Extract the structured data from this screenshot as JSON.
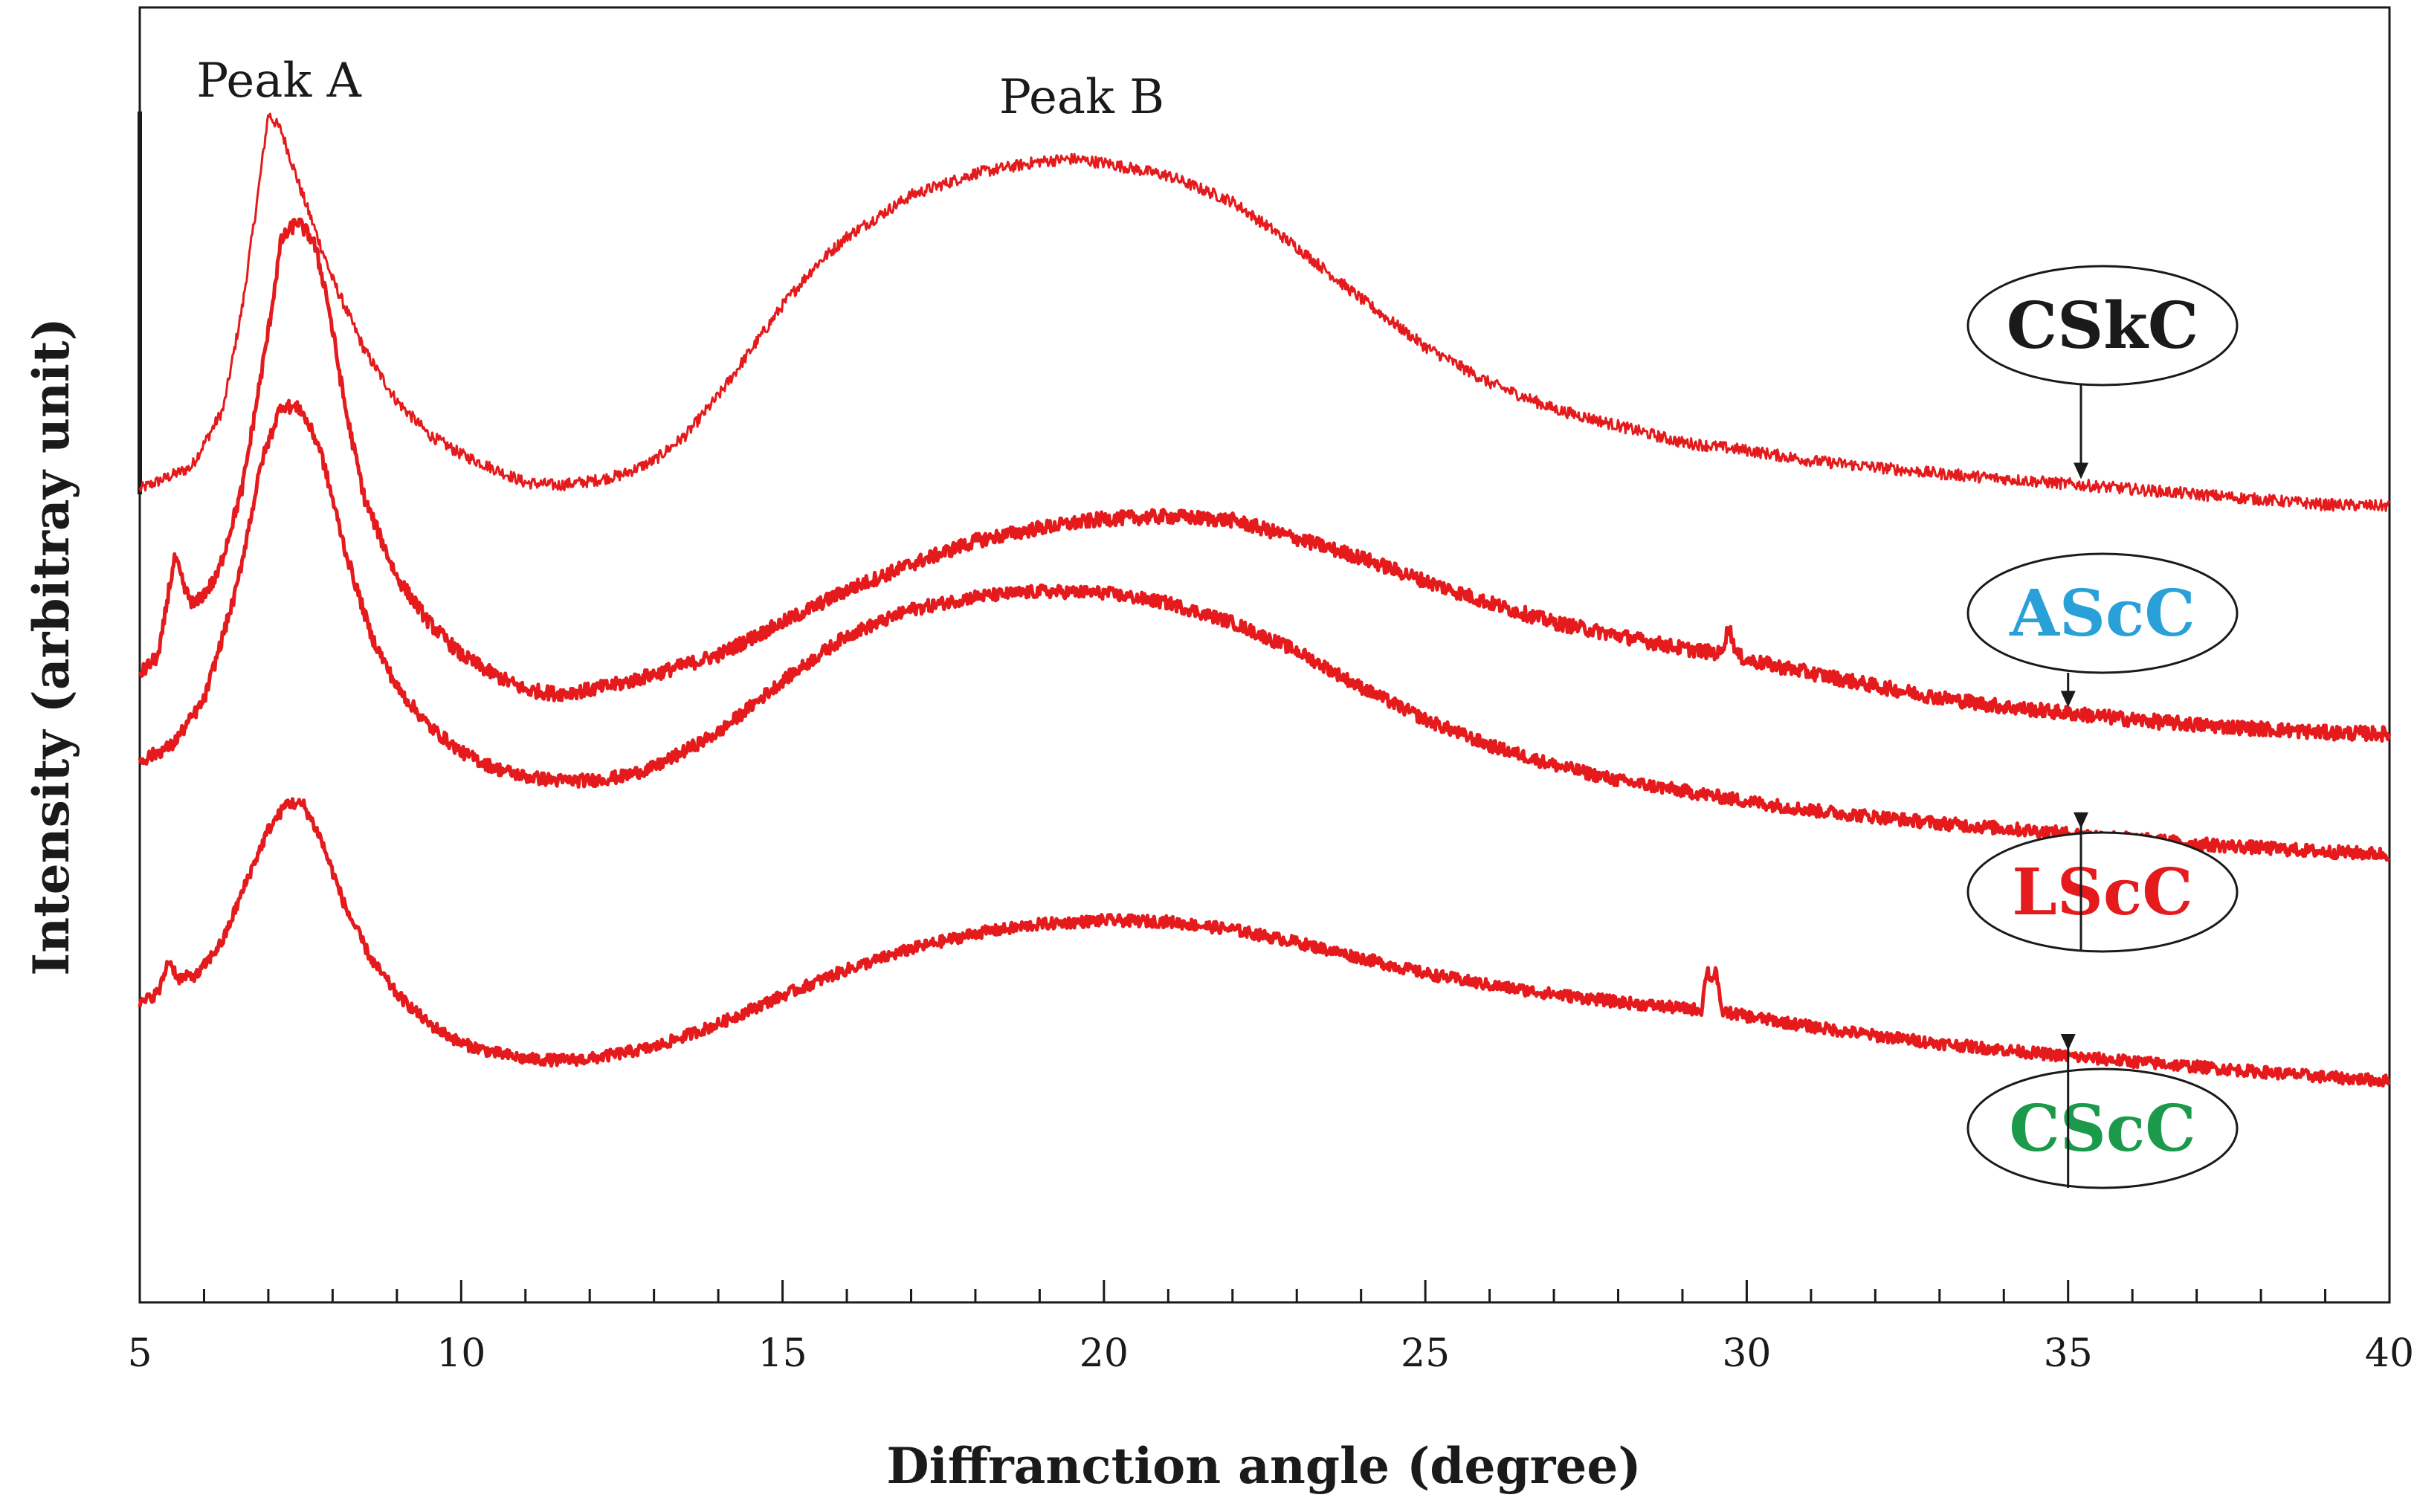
{
  "chart_data": {
    "type": "line",
    "xlabel": "Diffranction angle (degree)",
    "ylabel": "Intensity (arbitray unit)",
    "xlim": [
      5,
      40
    ],
    "ylim": [
      0,
      100
    ],
    "x_ticks": [
      5,
      10,
      15,
      20,
      25,
      30,
      35,
      40
    ],
    "x_tick_labels": [
      "5",
      "10",
      "15",
      "20",
      "25",
      "30",
      "35",
      "40"
    ],
    "minor_tick_step": 1,
    "grid": false,
    "y_ticks_shown": false,
    "line_color": "#e41a1c",
    "annotations": [
      {
        "text": "Peak A",
        "x": 7.1
      },
      {
        "text": "Peak B",
        "x": 19.6
      }
    ],
    "series": [
      {
        "name": "CSkC",
        "label_color": "#1a1a1a",
        "label_pointer_x": 35.2,
        "stroke_width": 3,
        "noise": 0.45,
        "points": [
          [
            5.0,
            62.8
          ],
          [
            5.8,
            64.5
          ],
          [
            6.3,
            69
          ],
          [
            6.6,
            77
          ],
          [
            6.85,
            86
          ],
          [
            7.0,
            91.8
          ],
          [
            7.2,
            90.5
          ],
          [
            7.5,
            86
          ],
          [
            8.0,
            79
          ],
          [
            8.5,
            73.5
          ],
          [
            9.0,
            69.6
          ],
          [
            9.5,
            67
          ],
          [
            10.0,
            65.5
          ],
          [
            10.5,
            64.4
          ],
          [
            11.0,
            63.3
          ],
          [
            11.5,
            63.1
          ],
          [
            12.0,
            63.4
          ],
          [
            12.5,
            63.9
          ],
          [
            13.0,
            65
          ],
          [
            13.5,
            67
          ],
          [
            14.0,
            70
          ],
          [
            14.5,
            73.5
          ],
          [
            15.0,
            77
          ],
          [
            15.5,
            80
          ],
          [
            16.0,
            82.3
          ],
          [
            17.0,
            85.5
          ],
          [
            18.0,
            87.2
          ],
          [
            19.0,
            88.1
          ],
          [
            19.5,
            88.3
          ],
          [
            20.0,
            88
          ],
          [
            21.0,
            87
          ],
          [
            22.0,
            85
          ],
          [
            23.0,
            81.5
          ],
          [
            24.0,
            77.5
          ],
          [
            25.0,
            73.8
          ],
          [
            26.0,
            71
          ],
          [
            27.0,
            69
          ],
          [
            28.0,
            67.7
          ],
          [
            29.0,
            66.4
          ],
          [
            30.0,
            65.8
          ],
          [
            31.0,
            65
          ],
          [
            32.0,
            64.5
          ],
          [
            33.0,
            64
          ],
          [
            34.0,
            63.6
          ],
          [
            35.0,
            63.2
          ],
          [
            36.0,
            62.8
          ],
          [
            37.0,
            62.4
          ],
          [
            38.0,
            62
          ],
          [
            39.0,
            61.6
          ],
          [
            40.0,
            61.5
          ]
        ]
      },
      {
        "name": "AScC",
        "label_color": "#2aa0d9",
        "label_pointer_x": 35.0,
        "stroke_width": 5,
        "noise": 0.55,
        "points": [
          [
            5.0,
            48.5
          ],
          [
            5.3,
            50
          ],
          [
            5.45,
            55
          ],
          [
            5.55,
            57.5
          ],
          [
            5.7,
            55
          ],
          [
            5.85,
            53.8
          ],
          [
            6.2,
            56
          ],
          [
            6.6,
            63
          ],
          [
            7.0,
            75
          ],
          [
            7.2,
            82
          ],
          [
            7.45,
            83.5
          ],
          [
            7.7,
            82
          ],
          [
            7.9,
            78
          ],
          [
            8.2,
            69
          ],
          [
            8.5,
            62
          ],
          [
            9.0,
            56
          ],
          [
            9.5,
            52.5
          ],
          [
            10.0,
            50
          ],
          [
            10.5,
            48.5
          ],
          [
            11.0,
            47.3
          ],
          [
            11.5,
            47
          ],
          [
            12.0,
            47.3
          ],
          [
            12.5,
            47.8
          ],
          [
            13.0,
            48.5
          ],
          [
            14.0,
            50
          ],
          [
            15.0,
            52.5
          ],
          [
            16.0,
            55
          ],
          [
            17.0,
            57
          ],
          [
            18.0,
            58.8
          ],
          [
            19.0,
            59.8
          ],
          [
            20.0,
            60.5
          ],
          [
            21.0,
            60.7
          ],
          [
            22.0,
            60.4
          ],
          [
            23.0,
            59
          ],
          [
            24.0,
            57.5
          ],
          [
            25.0,
            55.7
          ],
          [
            26.0,
            54
          ],
          [
            27.0,
            52.5
          ],
          [
            28.0,
            51.5
          ],
          [
            29.0,
            50.5
          ],
          [
            29.6,
            50.1
          ],
          [
            29.72,
            52.2
          ],
          [
            29.85,
            50
          ],
          [
            30.0,
            49.6
          ],
          [
            31.0,
            48.6
          ],
          [
            32.0,
            47.6
          ],
          [
            33.0,
            46.7
          ],
          [
            34.0,
            46
          ],
          [
            35.0,
            45.5
          ],
          [
            36.0,
            45
          ],
          [
            37.0,
            44.6
          ],
          [
            38.0,
            44.3
          ],
          [
            39.0,
            44
          ],
          [
            40.0,
            43.9
          ]
        ]
      },
      {
        "name": "LScC",
        "label_color": "#e41a1c",
        "label_pointer_x": 35.2,
        "stroke_width": 5,
        "noise": 0.5,
        "points": [
          [
            5.0,
            41.8
          ],
          [
            5.5,
            43
          ],
          [
            6.0,
            46.5
          ],
          [
            6.5,
            55
          ],
          [
            6.9,
            65
          ],
          [
            7.2,
            69.3
          ],
          [
            7.5,
            69
          ],
          [
            7.8,
            66
          ],
          [
            8.2,
            58
          ],
          [
            8.6,
            51.5
          ],
          [
            9.0,
            47.5
          ],
          [
            9.5,
            44.5
          ],
          [
            10.0,
            42.5
          ],
          [
            10.5,
            41.3
          ],
          [
            11.0,
            40.6
          ],
          [
            11.5,
            40.3
          ],
          [
            12.0,
            40.3
          ],
          [
            12.5,
            40.6
          ],
          [
            13.0,
            41.3
          ],
          [
            14.0,
            44
          ],
          [
            15.0,
            48
          ],
          [
            16.0,
            51.5
          ],
          [
            17.0,
            53.5
          ],
          [
            18.0,
            54.5
          ],
          [
            19.0,
            54.9
          ],
          [
            20.0,
            54.8
          ],
          [
            21.0,
            54
          ],
          [
            22.0,
            52.5
          ],
          [
            23.0,
            50.3
          ],
          [
            24.0,
            47.5
          ],
          [
            25.0,
            45
          ],
          [
            26.0,
            43
          ],
          [
            27.0,
            41.5
          ],
          [
            28.0,
            40.3
          ],
          [
            29.0,
            39.5
          ],
          [
            30.0,
            38.7
          ],
          [
            31.0,
            38
          ],
          [
            32.0,
            37.5
          ],
          [
            33.0,
            37
          ],
          [
            34.0,
            36.6
          ],
          [
            35.0,
            36.2
          ],
          [
            36.0,
            35.8
          ],
          [
            37.0,
            35.4
          ],
          [
            38.0,
            35.1
          ],
          [
            39.0,
            34.8
          ],
          [
            40.0,
            34.6
          ]
        ]
      },
      {
        "name": "CScC",
        "label_color": "#1a9a4a",
        "label_pointer_x": 35.0,
        "stroke_width": 5,
        "noise": 0.45,
        "points": [
          [
            5.0,
            23
          ],
          [
            5.3,
            24
          ],
          [
            5.45,
            26.5
          ],
          [
            5.6,
            25
          ],
          [
            5.9,
            25.3
          ],
          [
            6.3,
            28
          ],
          [
            6.7,
            33
          ],
          [
            7.0,
            36.5
          ],
          [
            7.3,
            38.6
          ],
          [
            7.55,
            38.4
          ],
          [
            7.8,
            36
          ],
          [
            8.2,
            30.5
          ],
          [
            8.6,
            26.5
          ],
          [
            9.0,
            23.8
          ],
          [
            9.5,
            21.5
          ],
          [
            10.0,
            20
          ],
          [
            10.5,
            19.3
          ],
          [
            11.0,
            18.8
          ],
          [
            11.5,
            18.7
          ],
          [
            12.0,
            18.8
          ],
          [
            13.0,
            19.7
          ],
          [
            14.0,
            21.5
          ],
          [
            15.0,
            23.7
          ],
          [
            16.0,
            25.7
          ],
          [
            17.0,
            27.3
          ],
          [
            18.0,
            28.5
          ],
          [
            19.0,
            29.2
          ],
          [
            20.0,
            29.5
          ],
          [
            21.0,
            29.4
          ],
          [
            22.0,
            28.8
          ],
          [
            23.0,
            27.8
          ],
          [
            24.0,
            26.6
          ],
          [
            25.0,
            25.4
          ],
          [
            26.0,
            24.5
          ],
          [
            27.0,
            23.8
          ],
          [
            28.0,
            23.2
          ],
          [
            29.0,
            22.7
          ],
          [
            29.3,
            22.6
          ],
          [
            29.38,
            25.8
          ],
          [
            29.45,
            24.8
          ],
          [
            29.52,
            25.8
          ],
          [
            29.6,
            22.5
          ],
          [
            30.0,
            22.1
          ],
          [
            31.0,
            21.3
          ],
          [
            32.0,
            20.6
          ],
          [
            33.0,
            20
          ],
          [
            34.0,
            19.5
          ],
          [
            35.0,
            19
          ],
          [
            36.0,
            18.6
          ],
          [
            37.0,
            18.2
          ],
          [
            38.0,
            17.8
          ],
          [
            39.0,
            17.4
          ],
          [
            40.0,
            17.1
          ]
        ]
      }
    ]
  }
}
